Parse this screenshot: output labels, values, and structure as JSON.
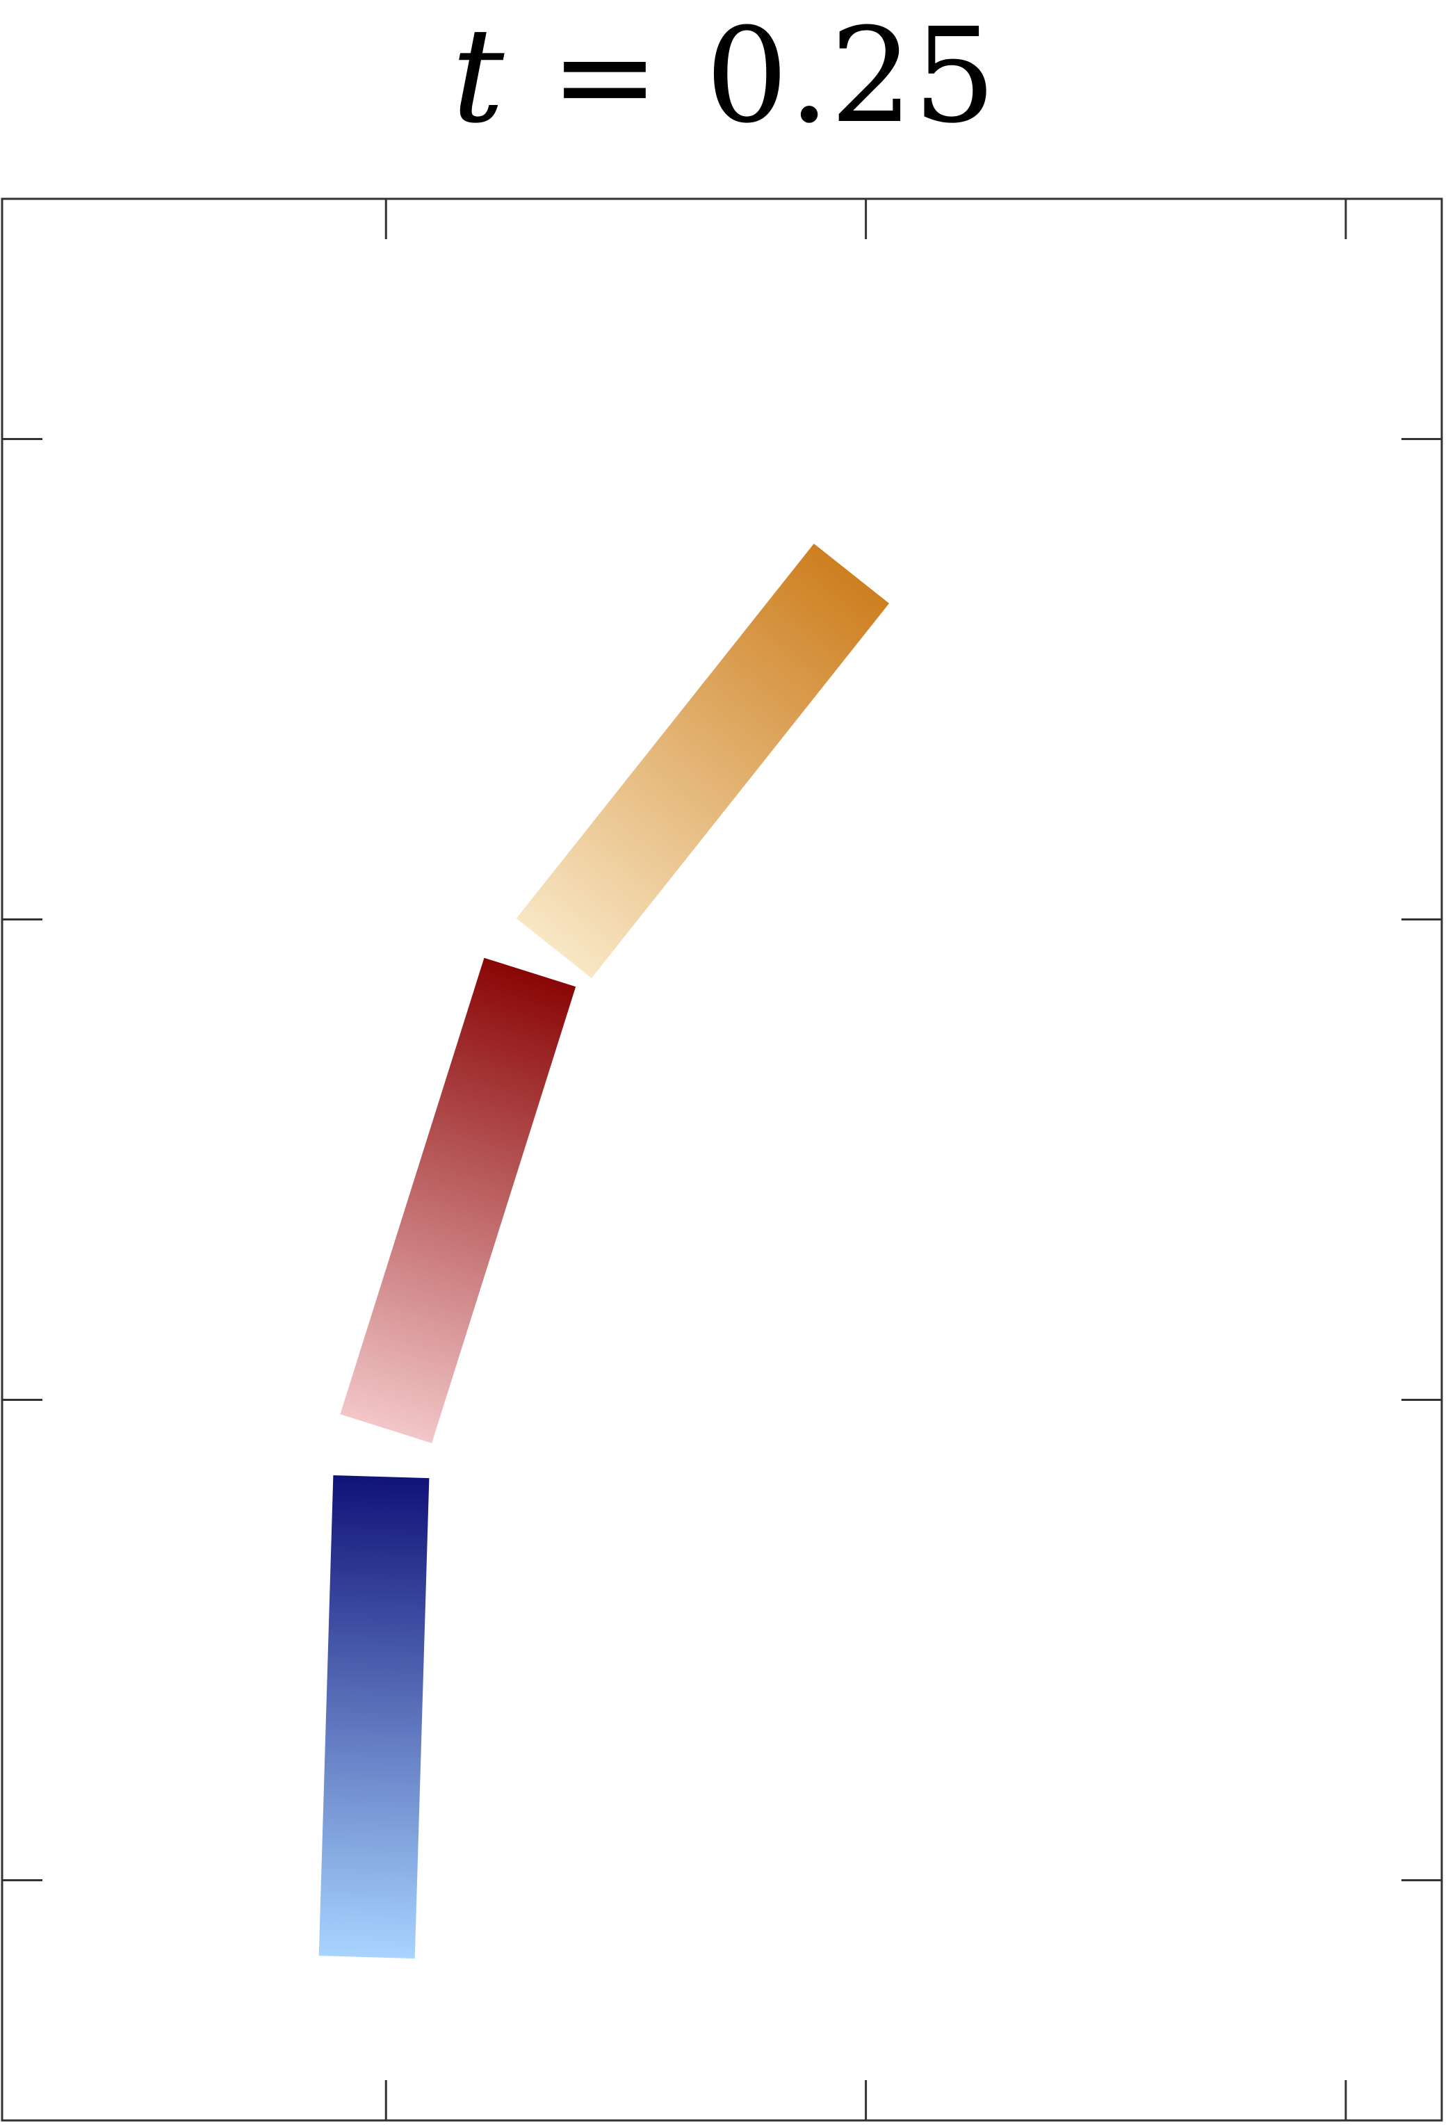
{
  "title": {
    "variable": "t",
    "operator": "=",
    "value": "0.25"
  },
  "chart_data": {
    "type": "segments",
    "title": "t = 0.25",
    "xlabel": "",
    "ylabel": "",
    "tick_labels_shown": false,
    "grid": false,
    "legend": "none",
    "xlim": [
      0,
      3
    ],
    "ylim": [
      0,
      4
    ],
    "x_ticks": [
      0.8,
      1.8,
      2.8
    ],
    "y_ticks": [
      0.5,
      1.5,
      2.5,
      3.5
    ],
    "frame_color": "#333333",
    "segments": [
      {
        "color_start": "#a8d4ff",
        "color_end": "#101278",
        "start": [
          0.76,
          0.34
        ],
        "end": [
          0.79,
          1.34
        ],
        "width": 0.2
      },
      {
        "color_start": "#f2c6c8",
        "color_end": "#8a0606",
        "start": [
          0.8,
          1.44
        ],
        "end": [
          1.1,
          2.39
        ],
        "width": 0.2
      },
      {
        "color_start": "#f8e6c4",
        "color_end": "#cd7f20",
        "start": [
          1.15,
          2.44
        ],
        "end": [
          1.77,
          3.22
        ],
        "width": 0.2
      }
    ]
  }
}
